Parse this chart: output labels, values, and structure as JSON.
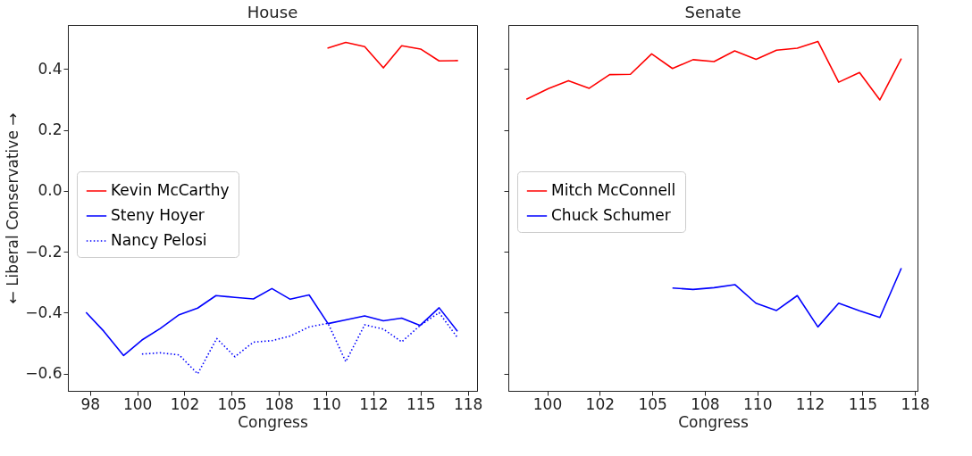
{
  "chart_data": [
    {
      "type": "line",
      "title": "House",
      "xlabel": "Congress",
      "ylabel": "← Liberal                    Conservative →",
      "xlim": [
        96.33,
        117.99
      ],
      "ylim": [
        -0.657,
        0.545
      ],
      "xticks": [
        {
          "value": 97.5,
          "label": "98"
        },
        100,
        {
          "value": 102.5,
          "label": "102"
        },
        105,
        {
          "value": 107.5,
          "label": "108"
        },
        110,
        {
          "value": 112.5,
          "label": "112"
        },
        115,
        {
          "value": 117.5,
          "label": "118"
        }
      ],
      "yticks": [
        {
          "value": -0.6,
          "label": "−0.6"
        },
        {
          "value": -0.4,
          "label": "−0.4"
        },
        {
          "value": -0.2,
          "label": "−0.2"
        },
        {
          "value": 0,
          "label": "0.0"
        },
        0.2,
        0.4
      ],
      "grid": false,
      "legend": "left",
      "series": [
        {
          "name": "Kevin McCarthy",
          "color": "#ff0000",
          "line_style": "solid",
          "x": [
            110.07,
            111.04,
            112.04,
            113.03,
            114.0,
            115.0,
            115.98,
            116.98
          ],
          "values": [
            0.469,
            0.488,
            0.474,
            0.404,
            0.477,
            0.466,
            0.427,
            0.428
          ]
        },
        {
          "name": "Steny Hoyer",
          "color": "#0000ff",
          "line_style": "solid",
          "x": [
            97.29,
            98.23,
            99.28,
            100.25,
            101.22,
            102.22,
            103.2,
            104.17,
            105.17,
            106.15,
            107.13,
            108.1,
            109.1,
            110.1,
            111.09,
            112.04,
            113.03,
            114.0,
            114.98,
            115.98,
            116.95
          ],
          "values": [
            -0.399,
            -0.461,
            -0.541,
            -0.49,
            -0.452,
            -0.407,
            -0.385,
            -0.344,
            -0.35,
            -0.355,
            -0.321,
            -0.356,
            -0.342,
            -0.436,
            -0.423,
            -0.411,
            -0.427,
            -0.418,
            -0.442,
            -0.384,
            -0.461
          ]
        },
        {
          "name": "Nancy Pelosi",
          "color": "#0000ff",
          "line_style": "dotted",
          "x": [
            100.25,
            101.22,
            102.22,
            103.2,
            104.21,
            105.17,
            106.15,
            107.13,
            108.1,
            109.1,
            110.1,
            111.04,
            112.04,
            113.03,
            114.0,
            114.98,
            115.98,
            116.95
          ],
          "values": [
            -0.536,
            -0.532,
            -0.539,
            -0.601,
            -0.485,
            -0.545,
            -0.497,
            -0.492,
            -0.477,
            -0.447,
            -0.435,
            -0.561,
            -0.44,
            -0.454,
            -0.496,
            -0.442,
            -0.4,
            -0.482
          ]
        }
      ]
    },
    {
      "type": "line",
      "title": "Senate",
      "xlabel": "Congress",
      "xlim": [
        98.15,
        117.62
      ],
      "ylim": [
        -0.657,
        0.545
      ],
      "xticks": [
        100,
        {
          "value": 102.5,
          "label": "102"
        },
        105,
        {
          "value": 107.5,
          "label": "108"
        },
        110,
        {
          "value": 112.5,
          "label": "112"
        },
        115,
        {
          "value": 117.5,
          "label": "118"
        }
      ],
      "yticks": [
        -0.6,
        -0.4,
        -0.2,
        0,
        0.2,
        0.4
      ],
      "tick_labels": "x",
      "grid": false,
      "legend": "left",
      "series": [
        {
          "name": "Mitch McConnell",
          "color": "#ff0000",
          "line_style": "solid",
          "x": [
            99.01,
            100.06,
            101.01,
            102.0,
            102.97,
            103.96,
            104.97,
            105.96,
            106.94,
            107.94,
            108.92,
            109.94,
            110.91,
            111.9,
            112.88,
            113.87,
            114.86,
            115.83,
            116.85
          ],
          "values": [
            0.301,
            0.336,
            0.362,
            0.337,
            0.382,
            0.383,
            0.45,
            0.402,
            0.431,
            0.425,
            0.46,
            0.432,
            0.462,
            0.469,
            0.491,
            0.357,
            0.389,
            0.299,
            0.435
          ]
        },
        {
          "name": "Chuck Schumer",
          "color": "#0000ff",
          "line_style": "solid",
          "x": [
            105.96,
            106.94,
            107.94,
            108.93,
            109.93,
            110.91,
            111.9,
            112.88,
            113.87,
            114.86,
            115.83,
            116.85
          ],
          "values": [
            -0.319,
            -0.324,
            -0.318,
            -0.308,
            -0.369,
            -0.393,
            -0.344,
            -0.447,
            -0.369,
            -0.394,
            -0.416,
            -0.254
          ]
        }
      ]
    }
  ]
}
